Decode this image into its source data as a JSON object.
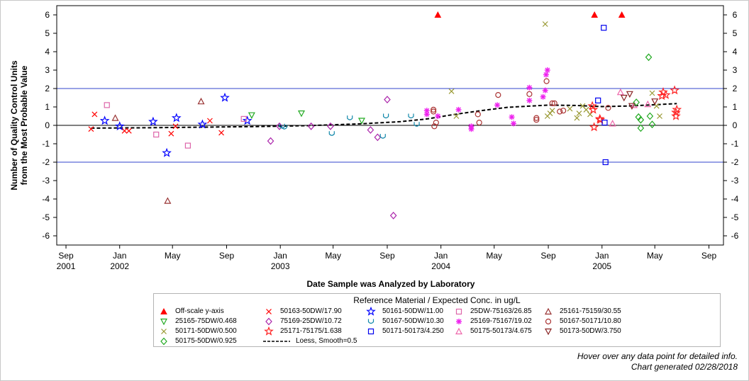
{
  "chart_data": {
    "type": "scatter",
    "ylabel_lines": [
      "Number of Quality Control Units",
      "from the Most Probable Value"
    ],
    "xlabel": "Date Sample was Analyzed by Laboratory",
    "ylim": [
      -6.5,
      6.5
    ],
    "yticks": [
      -6,
      -5,
      -4,
      -3,
      -2,
      -1,
      0,
      1,
      2,
      3,
      4,
      5,
      6
    ],
    "xlim": [
      "2001-08-11",
      "2005-10-04"
    ],
    "xticks": [
      {
        "date": "2001-09-01",
        "label": "Sep",
        "year": "2001"
      },
      {
        "date": "2002-01-01",
        "label": "Jan",
        "year": "2002"
      },
      {
        "date": "2002-05-01",
        "label": "May",
        "year": ""
      },
      {
        "date": "2002-09-01",
        "label": "Sep",
        "year": ""
      },
      {
        "date": "2003-01-01",
        "label": "Jan",
        "year": "2003"
      },
      {
        "date": "2003-05-01",
        "label": "May",
        "year": ""
      },
      {
        "date": "2003-09-01",
        "label": "Sep",
        "year": ""
      },
      {
        "date": "2004-01-01",
        "label": "Jan",
        "year": "2004"
      },
      {
        "date": "2004-05-01",
        "label": "May",
        "year": ""
      },
      {
        "date": "2004-09-01",
        "label": "Sep",
        "year": ""
      },
      {
        "date": "2005-01-01",
        "label": "Jan",
        "year": "2005"
      },
      {
        "date": "2005-05-01",
        "label": "May",
        "year": ""
      },
      {
        "date": "2005-09-01",
        "label": "Sep",
        "year": ""
      }
    ],
    "reference_lines": [
      {
        "y": 2,
        "color": "#3344cc"
      },
      {
        "y": -2,
        "color": "#3344cc"
      },
      {
        "y": 0,
        "color": "#000000"
      }
    ],
    "legend_title": "Reference Material / Expected Conc. in ug/L",
    "series": [
      {
        "name": "Off-scale y-axis",
        "symbol": "triangle-filled",
        "color": "#ff0000",
        "points": [
          [
            "2003-12-25",
            6
          ],
          [
            "2004-12-15",
            6
          ],
          [
            "2005-02-15",
            6
          ]
        ]
      },
      {
        "name": "50163-50DW/17.90",
        "symbol": "x",
        "color": "#ff0000",
        "points": [
          [
            "2001-10-28",
            -0.2
          ],
          [
            "2001-11-05",
            0.6
          ],
          [
            "2002-01-12",
            -0.3
          ],
          [
            "2002-01-22",
            -0.3
          ],
          [
            "2002-04-28",
            -0.45
          ],
          [
            "2002-05-08",
            -0.05
          ],
          [
            "2002-07-25",
            0.25
          ],
          [
            "2002-08-20",
            -0.4
          ]
        ]
      },
      {
        "name": "50161-50DW/11.00",
        "symbol": "star",
        "color": "#0000ff",
        "points": [
          [
            "2001-11-28",
            0.25
          ],
          [
            "2002-01-01",
            -0.05
          ],
          [
            "2002-03-18",
            0.2
          ],
          [
            "2002-04-18",
            -1.5
          ],
          [
            "2002-05-10",
            0.4
          ],
          [
            "2002-07-08",
            0.05
          ],
          [
            "2002-08-28",
            1.5
          ],
          [
            "2002-10-18",
            0.25
          ]
        ]
      },
      {
        "name": "25DW-75163/26.85",
        "symbol": "square-open",
        "color": "#dd66aa",
        "points": [
          [
            "2001-12-03",
            1.1
          ],
          [
            "2002-03-25",
            -0.5
          ],
          [
            "2002-06-05",
            -1.1
          ],
          [
            "2002-10-10",
            0.35
          ]
        ]
      },
      {
        "name": "25161-75159/30.55",
        "symbol": "triangle-open",
        "color": "#993333",
        "points": [
          [
            "2001-12-22",
            0.4
          ],
          [
            "2002-04-20",
            -4.1
          ],
          [
            "2002-07-05",
            1.3
          ]
        ]
      },
      {
        "name": "25165-75DW/0.468",
        "symbol": "tri-down-open",
        "color": "#22aa22",
        "points": [
          [
            "2002-10-28",
            0.55
          ],
          [
            "2003-02-18",
            0.65
          ],
          [
            "2003-07-05",
            0.25
          ]
        ]
      },
      {
        "name": "75169-25DW/10.72",
        "symbol": "diamond-open",
        "color": "#aa22aa",
        "points": [
          [
            "2002-12-10",
            -0.85
          ],
          [
            "2002-12-30",
            -0.05
          ],
          [
            "2003-03-12",
            -0.05
          ],
          [
            "2003-04-25",
            -0.05
          ],
          [
            "2003-07-25",
            -0.25
          ],
          [
            "2003-08-10",
            -0.65
          ],
          [
            "2003-09-01",
            1.4
          ],
          [
            "2003-09-15",
            -4.9
          ]
        ]
      },
      {
        "name": "50167-50DW/10.30",
        "symbol": "cup-open",
        "color": "#1188aa",
        "points": [
          [
            "2003-01-05",
            -0.05
          ],
          [
            "2003-01-10",
            -0.1
          ],
          [
            "2003-04-28",
            -0.45
          ],
          [
            "2003-06-08",
            0.4
          ],
          [
            "2003-08-22",
            -0.6
          ],
          [
            "2003-08-29",
            0.5
          ],
          [
            "2003-10-25",
            0.5
          ],
          [
            "2003-11-07",
            0.05
          ]
        ]
      },
      {
        "name": "25169-75167/19.02",
        "symbol": "asterisk",
        "color": "#ee22ee",
        "points": [
          [
            "2003-11-30",
            0.6
          ],
          [
            "2003-11-30",
            0.8
          ],
          [
            "2003-12-25",
            0.5
          ],
          [
            "2004-02-10",
            0.85
          ],
          [
            "2004-03-10",
            -0.2
          ],
          [
            "2004-03-10",
            -0.05
          ],
          [
            "2004-05-08",
            1.1
          ],
          [
            "2004-06-10",
            0.45
          ],
          [
            "2004-06-14",
            0.1
          ],
          [
            "2004-07-20",
            2.05
          ],
          [
            "2004-07-20",
            1.35
          ],
          [
            "2004-08-20",
            1.55
          ],
          [
            "2004-08-25",
            1.9
          ],
          [
            "2004-08-27",
            2.75
          ],
          [
            "2004-08-30",
            3.0
          ]
        ]
      },
      {
        "name": "50167-50171/10.80",
        "symbol": "circle-open",
        "color": "#aa3333",
        "points": [
          [
            "2003-12-15",
            0.85
          ],
          [
            "2003-12-15",
            0.75
          ],
          [
            "2003-12-17",
            -0.05
          ],
          [
            "2003-12-21",
            0.15
          ],
          [
            "2004-03-25",
            0.6
          ],
          [
            "2004-03-28",
            0.15
          ],
          [
            "2004-05-10",
            1.65
          ],
          [
            "2004-07-20",
            1.7
          ],
          [
            "2004-08-05",
            0.4
          ],
          [
            "2004-08-05",
            0.3
          ],
          [
            "2004-08-28",
            2.4
          ],
          [
            "2004-09-10",
            1.2
          ],
          [
            "2004-09-15",
            1.2
          ],
          [
            "2004-09-27",
            0.75
          ],
          [
            "2004-10-05",
            0.8
          ],
          [
            "2005-01-15",
            0.95
          ]
        ]
      },
      {
        "name": "50171-50DW/0.500",
        "symbol": "x",
        "color": "#999933",
        "points": [
          [
            "2004-01-25",
            1.85
          ],
          [
            "2004-02-05",
            0.5
          ],
          [
            "2004-08-25",
            5.5
          ],
          [
            "2004-08-30",
            0.5
          ],
          [
            "2004-09-05",
            0.65
          ],
          [
            "2004-09-10",
            0.8
          ],
          [
            "2004-10-20",
            0.9
          ],
          [
            "2004-11-05",
            0.4
          ],
          [
            "2004-11-10",
            0.65
          ],
          [
            "2004-11-18",
            1.05
          ],
          [
            "2004-11-26",
            0.85
          ],
          [
            "2004-12-05",
            0.6
          ],
          [
            "2005-04-25",
            1.75
          ],
          [
            "2005-05-05",
            1.05
          ],
          [
            "2005-05-12",
            0.5
          ]
        ]
      },
      {
        "name": "25171-75175/1.638",
        "symbol": "star",
        "color": "#ff2222",
        "points": [
          [
            "2004-12-10",
            1.05
          ],
          [
            "2004-12-12",
            0.85
          ],
          [
            "2004-12-14",
            -0.1
          ],
          [
            "2004-12-27",
            0.35
          ],
          [
            "2004-12-28",
            0.3
          ],
          [
            "2005-05-17",
            1.6
          ],
          [
            "2005-05-20",
            1.8
          ],
          [
            "2005-05-26",
            1.65
          ],
          [
            "2005-06-15",
            1.9
          ],
          [
            "2005-06-18",
            0.5
          ],
          [
            "2005-06-18",
            0.7
          ],
          [
            "2005-06-20",
            0.85
          ]
        ]
      },
      {
        "name": "50171-50173/4.250",
        "symbol": "square-open",
        "color": "#0000ee",
        "points": [
          [
            "2004-12-23",
            1.35
          ],
          [
            "2005-01-05",
            5.3
          ],
          [
            "2005-01-07",
            0.15
          ],
          [
            "2005-01-09",
            -2.0
          ]
        ]
      },
      {
        "name": "50175-50173/4.675",
        "symbol": "triangle-open",
        "color": "#ee66aa",
        "points": [
          [
            "2005-01-25",
            0.1
          ],
          [
            "2005-02-12",
            1.8
          ],
          [
            "2005-03-15",
            1.1
          ],
          [
            "2005-04-15",
            1.15
          ]
        ]
      },
      {
        "name": "50173-50DW/3.750",
        "symbol": "tri-down-open",
        "color": "#882222",
        "points": [
          [
            "2005-02-20",
            1.5
          ],
          [
            "2005-03-05",
            1.7
          ],
          [
            "2005-03-10",
            1.05
          ],
          [
            "2005-05-01",
            1.3
          ]
        ]
      },
      {
        "name": "50175-50DW/0.925",
        "symbol": "diamond-open",
        "color": "#22aa22",
        "points": [
          [
            "2005-03-20",
            1.25
          ],
          [
            "2005-03-25",
            0.45
          ],
          [
            "2005-03-30",
            0.3
          ],
          [
            "2005-03-30",
            -0.15
          ],
          [
            "2005-04-17",
            3.7
          ],
          [
            "2005-04-20",
            0.5
          ],
          [
            "2005-04-25",
            0.05
          ]
        ]
      }
    ],
    "loess": {
      "name": "Loess, Smooth=0.5",
      "points": [
        [
          "2001-10-28",
          -0.15
        ],
        [
          "2002-03-01",
          -0.13
        ],
        [
          "2002-07-01",
          -0.1
        ],
        [
          "2002-11-01",
          -0.07
        ],
        [
          "2003-03-01",
          -0.02
        ],
        [
          "2003-07-01",
          0.08
        ],
        [
          "2003-10-01",
          0.2
        ],
        [
          "2003-12-01",
          0.35
        ],
        [
          "2004-01-20",
          0.55
        ],
        [
          "2004-04-01",
          0.8
        ],
        [
          "2004-06-01",
          0.98
        ],
        [
          "2004-09-01",
          1.1
        ],
        [
          "2004-11-01",
          1.08
        ],
        [
          "2005-01-01",
          1.02
        ],
        [
          "2005-03-01",
          1.05
        ],
        [
          "2005-05-01",
          1.12
        ],
        [
          "2005-06-20",
          1.18
        ]
      ]
    }
  },
  "footer": {
    "line1": "Hover over any data point for detailed info.",
    "line2": "Chart generated 02/28/2018"
  }
}
